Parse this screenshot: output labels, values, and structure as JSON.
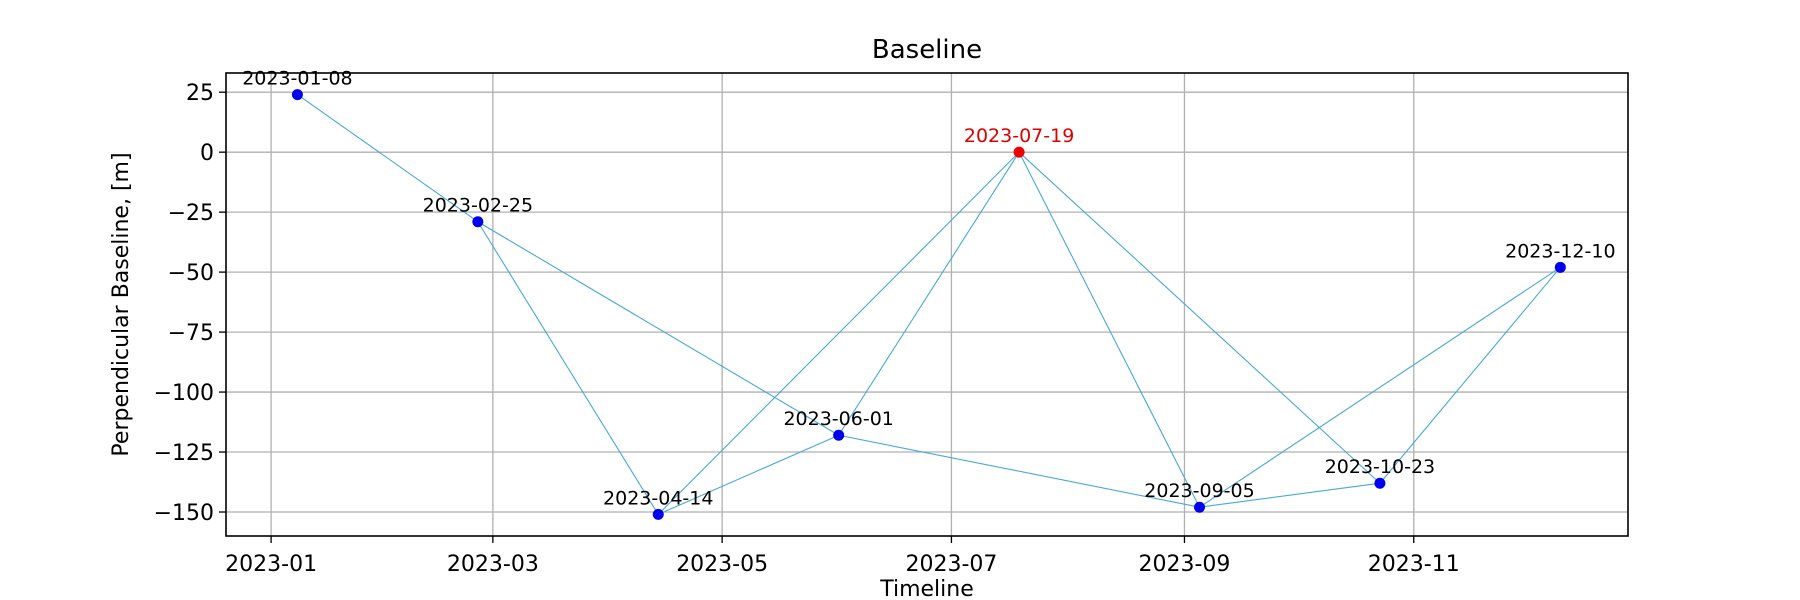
{
  "chart_data": {
    "type": "scatter",
    "title": "Baseline",
    "xlabel": "Timeline",
    "ylabel": "Perpendicular Baseline, [m]",
    "x_axis_type": "date",
    "xlim": [
      "2022-12-20",
      "2023-12-28"
    ],
    "ylim": [
      -160,
      33
    ],
    "grid": true,
    "x_ticks": [
      "2023-01",
      "2023-03",
      "2023-05",
      "2023-07",
      "2023-09",
      "2023-11"
    ],
    "x_tick_dates": [
      "2023-01-01",
      "2023-03-01",
      "2023-05-01",
      "2023-07-01",
      "2023-09-01",
      "2023-11-01"
    ],
    "y_ticks": [
      25,
      0,
      -25,
      -50,
      -75,
      -100,
      -125,
      -150
    ],
    "y_tick_labels": [
      "25",
      "0",
      "−25",
      "−50",
      "−75",
      "−100",
      "−125",
      "−150"
    ],
    "points": [
      {
        "date": "2023-01-08",
        "baseline": 24,
        "label": "2023-01-08",
        "reference": false
      },
      {
        "date": "2023-02-25",
        "baseline": -29,
        "label": "2023-02-25",
        "reference": false
      },
      {
        "date": "2023-04-14",
        "baseline": -151,
        "label": "2023-04-14",
        "reference": false
      },
      {
        "date": "2023-06-01",
        "baseline": -118,
        "label": "2023-06-01",
        "reference": false
      },
      {
        "date": "2023-07-19",
        "baseline": 0,
        "label": "2023-07-19",
        "reference": true
      },
      {
        "date": "2023-09-05",
        "baseline": -148,
        "label": "2023-09-05",
        "reference": false
      },
      {
        "date": "2023-10-23",
        "baseline": -138,
        "label": "2023-10-23",
        "reference": false
      },
      {
        "date": "2023-12-10",
        "baseline": -48,
        "label": "2023-12-10",
        "reference": false
      }
    ],
    "pairs": [
      [
        "2023-01-08",
        "2023-02-25"
      ],
      [
        "2023-02-25",
        "2023-04-14"
      ],
      [
        "2023-02-25",
        "2023-06-01"
      ],
      [
        "2023-04-14",
        "2023-06-01"
      ],
      [
        "2023-04-14",
        "2023-07-19"
      ],
      [
        "2023-06-01",
        "2023-07-19"
      ],
      [
        "2023-06-01",
        "2023-09-05"
      ],
      [
        "2023-07-19",
        "2023-09-05"
      ],
      [
        "2023-07-19",
        "2023-10-23"
      ],
      [
        "2023-09-05",
        "2023-10-23"
      ],
      [
        "2023-09-05",
        "2023-12-10"
      ],
      [
        "2023-10-23",
        "2023-12-10"
      ]
    ],
    "colors": {
      "point": "#0000ee",
      "reference_point": "#ee0000",
      "reference_label": "#dd0000",
      "edge": "#4aa8d8",
      "grid": "#b0b0b0"
    }
  }
}
